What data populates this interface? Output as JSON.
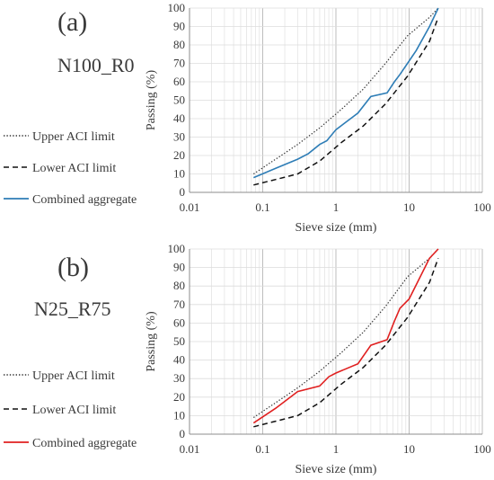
{
  "chart_data": [
    {
      "type": "line",
      "panel_label": "(a)",
      "panel_name": "N100_R0",
      "xlabel": "Sieve size (mm)",
      "ylabel": "Passing (%)",
      "xscale": "log",
      "xlim": [
        0.01,
        100
      ],
      "ylim": [
        0,
        100
      ],
      "x_tick_labels": [
        "0.01",
        "0.1",
        "1",
        "10",
        "100"
      ],
      "y_tick_labels": [
        "0",
        "10",
        "20",
        "30",
        "40",
        "50",
        "60",
        "70",
        "80",
        "90",
        "100"
      ],
      "grid": true,
      "legend_position": "left",
      "series": [
        {
          "name": "Upper ACI limit",
          "style": "dotted",
          "color": "#333333",
          "x": [
            0.075,
            0.15,
            0.3,
            0.6,
            1.18,
            2.36,
            4.75,
            9.5,
            19,
            25
          ],
          "y": [
            10,
            18,
            26,
            35,
            45,
            56,
            70,
            85,
            95,
            100
          ]
        },
        {
          "name": "Lower ACI limit",
          "style": "dashed",
          "color": "#111111",
          "x": [
            0.075,
            0.15,
            0.3,
            0.6,
            1.18,
            2.36,
            4.75,
            9.5,
            19,
            25
          ],
          "y": [
            4,
            7,
            10,
            17,
            27,
            36,
            48,
            63,
            82,
            95
          ]
        },
        {
          "name": "Combined aggregate",
          "style": "solid",
          "color": "#2e7db6",
          "x": [
            0.075,
            0.15,
            0.3,
            0.42,
            0.6,
            0.75,
            1.0,
            2.0,
            3.0,
            5.0,
            6.3,
            7.5,
            9.5,
            12.5,
            19,
            25
          ],
          "y": [
            8,
            13,
            18,
            21,
            26,
            28,
            34,
            43,
            52,
            54,
            60,
            64,
            70,
            77,
            90,
            100
          ]
        }
      ]
    },
    {
      "type": "line",
      "panel_label": "(b)",
      "panel_name": "N25_R75",
      "xlabel": "Sieve size (mm)",
      "ylabel": "Passing (%)",
      "xscale": "log",
      "xlim": [
        0.01,
        100
      ],
      "ylim": [
        0,
        100
      ],
      "x_tick_labels": [
        "0.01",
        "0.1",
        "1",
        "10",
        "100"
      ],
      "y_tick_labels": [
        "0",
        "10",
        "20",
        "30",
        "40",
        "50",
        "60",
        "70",
        "80",
        "90",
        "100"
      ],
      "grid": true,
      "legend_position": "left",
      "series": [
        {
          "name": "Upper ACI limit",
          "style": "dotted",
          "color": "#333333",
          "x": [
            0.075,
            0.15,
            0.3,
            0.6,
            1.18,
            2.36,
            4.75,
            9.5,
            19,
            25
          ],
          "y": [
            9,
            17,
            25,
            34,
            44,
            55,
            69,
            85,
            95,
            100
          ]
        },
        {
          "name": "Lower ACI limit",
          "style": "dashed",
          "color": "#111111",
          "x": [
            0.075,
            0.15,
            0.3,
            0.6,
            1.18,
            2.36,
            4.75,
            9.5,
            19,
            25
          ],
          "y": [
            4,
            7,
            10,
            17,
            27,
            36,
            48,
            63,
            82,
            95
          ]
        },
        {
          "name": "Combined aggregate",
          "style": "solid",
          "color": "#e02020",
          "x": [
            0.075,
            0.15,
            0.3,
            0.6,
            0.8,
            1.0,
            2.0,
            3.0,
            5.0,
            6.3,
            7.5,
            10,
            19,
            25
          ],
          "y": [
            6,
            14,
            23,
            26,
            31,
            33,
            38,
            48,
            51,
            61,
            68,
            73,
            95,
            100
          ]
        }
      ]
    }
  ]
}
